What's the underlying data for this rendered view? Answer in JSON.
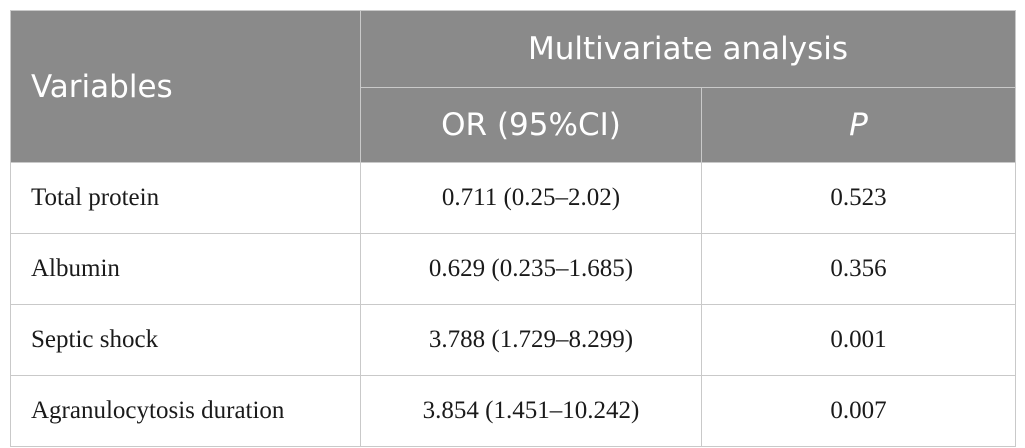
{
  "table": {
    "header": {
      "variables": "Variables",
      "group": "Multivariate analysis",
      "or_col": "OR (95%CI)",
      "p_col": "P"
    },
    "rows": [
      {
        "variable": "Total protein",
        "or": "0.711 (0.25–2.02)",
        "p": "0.523"
      },
      {
        "variable": "Albumin",
        "or": "0.629 (0.235–1.685)",
        "p": "0.356"
      },
      {
        "variable": "Septic shock",
        "or": "3.788 (1.729–8.299)",
        "p": "0.001"
      },
      {
        "variable": "Agranulocytosis duration",
        "or": "3.854 (1.451–10.242)",
        "p": "0.007"
      }
    ]
  }
}
